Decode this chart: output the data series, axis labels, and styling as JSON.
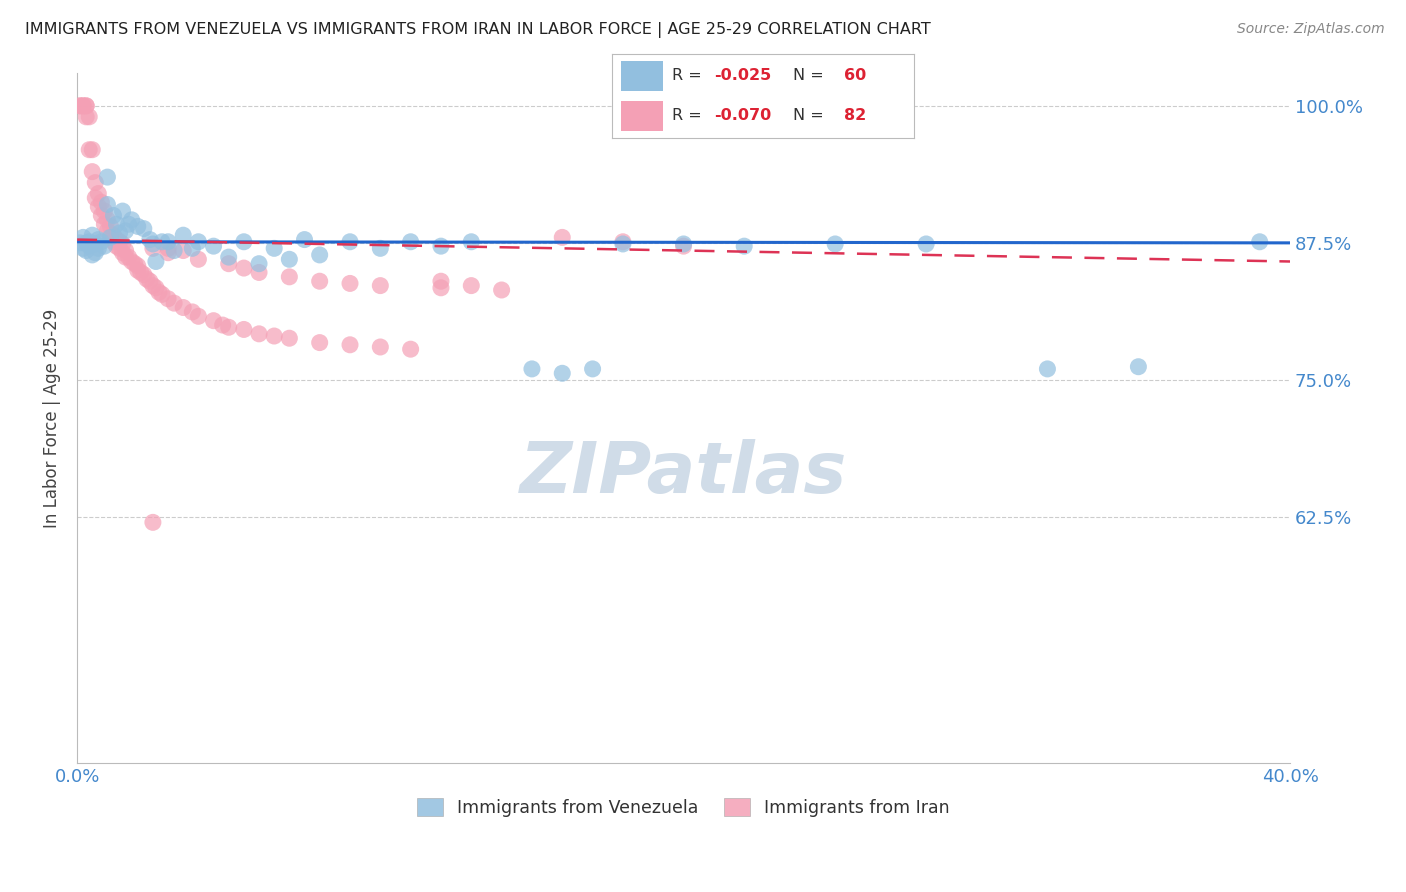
{
  "title": "IMMIGRANTS FROM VENEZUELA VS IMMIGRANTS FROM IRAN IN LABOR FORCE | AGE 25-29 CORRELATION CHART",
  "source": "Source: ZipAtlas.com",
  "ylabel": "In Labor Force | Age 25-29",
  "xlim": [
    0.0,
    0.4
  ],
  "ylim": [
    0.4,
    1.03
  ],
  "yticks": [
    0.625,
    0.75,
    0.875,
    1.0
  ],
  "yticklabels": [
    "62.5%",
    "75.0%",
    "87.5%",
    "100.0%"
  ],
  "xtick_labels_show": [
    "0.0%",
    "40.0%"
  ],
  "venezuela_color": "#92bfdf",
  "iran_color": "#f4a0b5",
  "venezuela_line_color": "#2266cc",
  "iran_line_color": "#dd3355",
  "watermark_color": "#d0dce8",
  "grid_color": "#cccccc",
  "background_color": "#ffffff",
  "title_color": "#222222",
  "right_axis_color": "#4488cc",
  "legend_box_color": "#ffffff",
  "legend_border_color": "#bbbbbb",
  "venezuela_R": -0.025,
  "venezuela_N": 60,
  "iran_R": -0.07,
  "iran_N": 82,
  "venezuela_scatter_x": [
    0.001,
    0.002,
    0.002,
    0.003,
    0.003,
    0.004,
    0.004,
    0.005,
    0.005,
    0.006,
    0.006,
    0.007,
    0.007,
    0.008,
    0.009,
    0.01,
    0.01,
    0.011,
    0.012,
    0.013,
    0.014,
    0.015,
    0.016,
    0.017,
    0.018,
    0.02,
    0.022,
    0.024,
    0.025,
    0.026,
    0.028,
    0.03,
    0.032,
    0.035,
    0.038,
    0.04,
    0.045,
    0.05,
    0.055,
    0.06,
    0.065,
    0.07,
    0.075,
    0.08,
    0.09,
    0.1,
    0.11,
    0.12,
    0.13,
    0.15,
    0.16,
    0.17,
    0.18,
    0.2,
    0.22,
    0.25,
    0.28,
    0.32,
    0.35,
    0.39
  ],
  "venezuela_scatter_y": [
    0.875,
    0.88,
    0.87,
    0.875,
    0.868,
    0.876,
    0.872,
    0.882,
    0.864,
    0.874,
    0.866,
    0.878,
    0.87,
    0.876,
    0.872,
    0.935,
    0.91,
    0.88,
    0.9,
    0.892,
    0.884,
    0.904,
    0.886,
    0.892,
    0.896,
    0.89,
    0.888,
    0.878,
    0.874,
    0.858,
    0.876,
    0.876,
    0.868,
    0.882,
    0.87,
    0.876,
    0.872,
    0.862,
    0.876,
    0.856,
    0.87,
    0.86,
    0.878,
    0.864,
    0.876,
    0.87,
    0.876,
    0.872,
    0.876,
    0.76,
    0.756,
    0.76,
    0.874,
    0.874,
    0.872,
    0.874,
    0.874,
    0.76,
    0.762,
    0.876
  ],
  "iran_scatter_x": [
    0.001,
    0.001,
    0.002,
    0.002,
    0.003,
    0.003,
    0.003,
    0.004,
    0.004,
    0.005,
    0.005,
    0.006,
    0.006,
    0.007,
    0.007,
    0.008,
    0.008,
    0.009,
    0.009,
    0.01,
    0.01,
    0.011,
    0.011,
    0.012,
    0.012,
    0.013,
    0.013,
    0.014,
    0.014,
    0.015,
    0.015,
    0.016,
    0.016,
    0.017,
    0.018,
    0.019,
    0.02,
    0.02,
    0.021,
    0.022,
    0.023,
    0.024,
    0.025,
    0.026,
    0.027,
    0.028,
    0.03,
    0.032,
    0.035,
    0.038,
    0.04,
    0.045,
    0.048,
    0.05,
    0.055,
    0.06,
    0.065,
    0.07,
    0.08,
    0.09,
    0.1,
    0.11,
    0.12,
    0.13,
    0.035,
    0.025,
    0.03,
    0.04,
    0.05,
    0.055,
    0.06,
    0.07,
    0.08,
    0.09,
    0.1,
    0.12,
    0.14,
    0.16,
    0.18,
    0.2,
    0.025,
    0.03
  ],
  "iran_scatter_y": [
    1.0,
    1.0,
    1.0,
    1.0,
    1.0,
    1.0,
    0.99,
    0.99,
    0.96,
    0.96,
    0.94,
    0.93,
    0.916,
    0.92,
    0.908,
    0.912,
    0.9,
    0.904,
    0.892,
    0.896,
    0.886,
    0.89,
    0.88,
    0.882,
    0.876,
    0.878,
    0.872,
    0.876,
    0.87,
    0.874,
    0.866,
    0.868,
    0.862,
    0.862,
    0.858,
    0.856,
    0.854,
    0.85,
    0.848,
    0.846,
    0.842,
    0.84,
    0.836,
    0.834,
    0.83,
    0.828,
    0.824,
    0.82,
    0.816,
    0.812,
    0.808,
    0.804,
    0.8,
    0.798,
    0.796,
    0.792,
    0.79,
    0.788,
    0.784,
    0.782,
    0.78,
    0.778,
    0.84,
    0.836,
    0.868,
    0.87,
    0.866,
    0.86,
    0.856,
    0.852,
    0.848,
    0.844,
    0.84,
    0.838,
    0.836,
    0.834,
    0.832,
    0.88,
    0.876,
    0.872,
    0.62,
    0.87
  ]
}
